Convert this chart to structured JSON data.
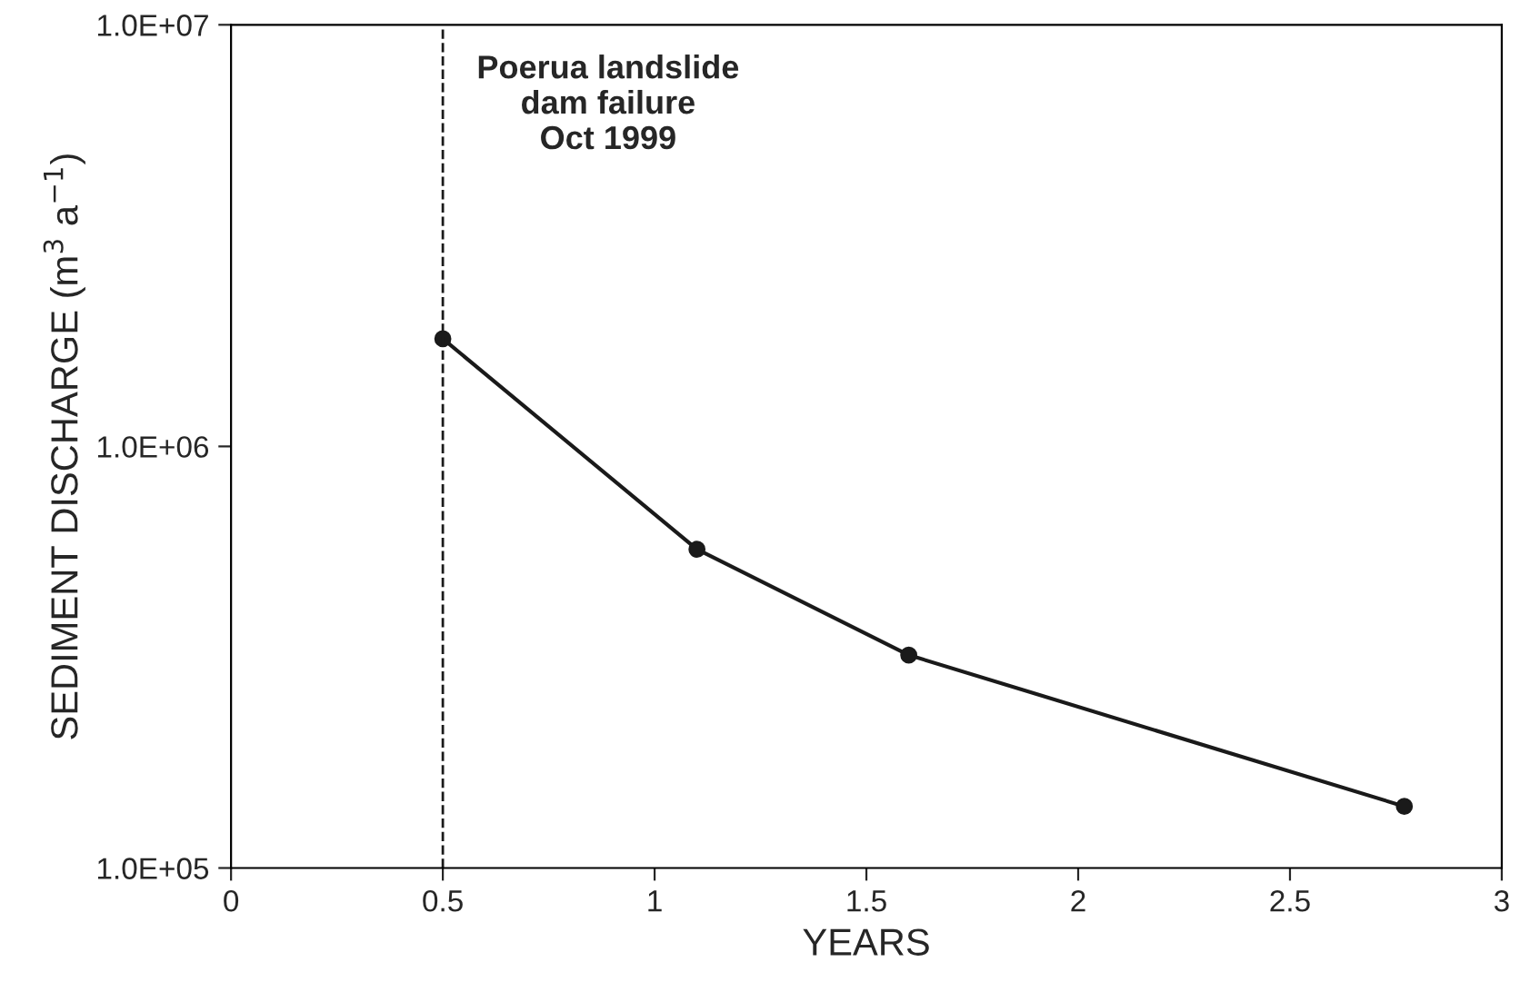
{
  "chart_data": {
    "type": "line",
    "xlabel": "YEARS",
    "ylabel": "SEDIMENT DISCHARGE (m$^{3}$ a$^{−1}$)",
    "x": [
      0.5,
      1.1,
      1.6,
      2.77
    ],
    "series": [
      {
        "color": "#1a1a1a",
        "values": [
          1800000,
          570000,
          320000,
          140000
        ]
      }
    ],
    "log": "y",
    "marker": "circle",
    "line_style": "solid",
    "grid": false,
    "legend": false,
    "xlim": [
      0,
      3
    ],
    "xticks": [
      0,
      0.5,
      1,
      1.5,
      2,
      2.5,
      3
    ],
    "ylim": [
      100000,
      10000000
    ],
    "yticks": [
      {
        "value": 100000,
        "label": "1.0E+05"
      },
      {
        "value": 1000000,
        "label": "1.0E+06"
      },
      {
        "value": 10000000,
        "label": "1.0E+07"
      }
    ],
    "ref_lines": [
      {
        "axis": "x",
        "value": 0.5,
        "label": "Poerua landslide\ndam failure\nOct 1999",
        "color": "#1a1a1a",
        "line_style": "dashed"
      }
    ]
  }
}
